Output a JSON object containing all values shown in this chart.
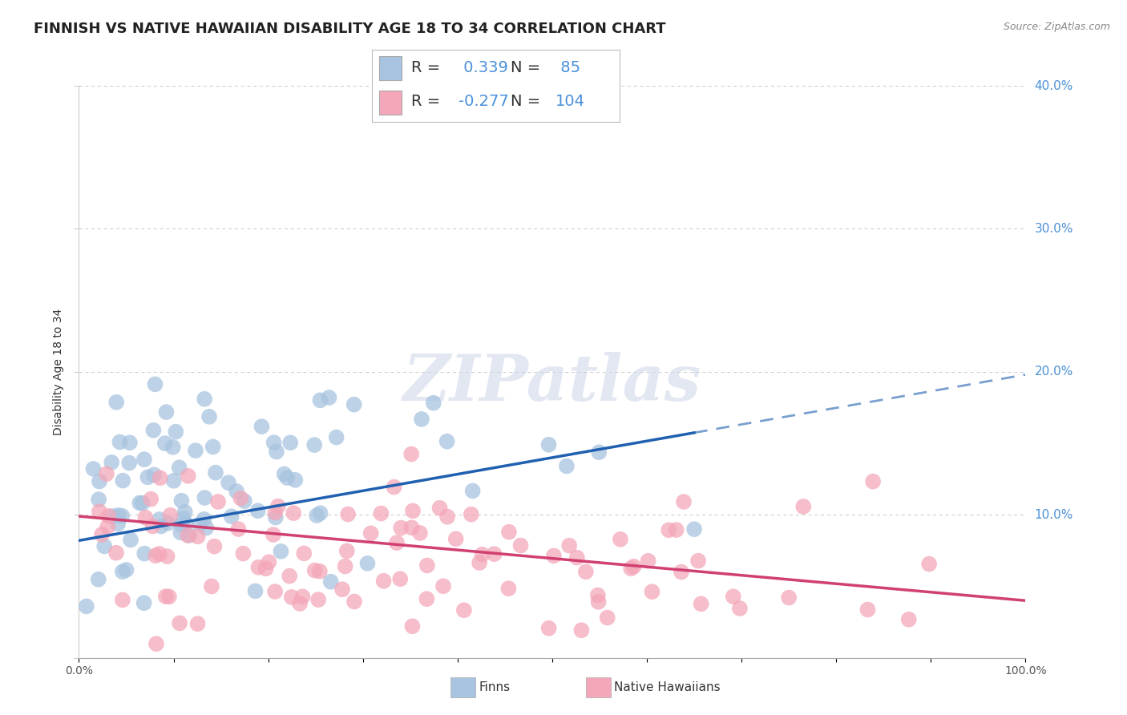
{
  "title": "FINNISH VS NATIVE HAWAIIAN DISABILITY AGE 18 TO 34 CORRELATION CHART",
  "source": "Source: ZipAtlas.com",
  "ylabel": "Disability Age 18 to 34",
  "xlim": [
    0,
    1.0
  ],
  "ylim": [
    0,
    0.4
  ],
  "xticks": [
    0.0,
    0.1,
    0.2,
    0.3,
    0.4,
    0.5,
    0.6,
    0.7,
    0.8,
    0.9,
    1.0
  ],
  "xticklabels": [
    "0.0%",
    "",
    "",
    "",
    "",
    "",
    "",
    "",
    "",
    "",
    "100.0%"
  ],
  "yticks": [
    0.0,
    0.1,
    0.2,
    0.3,
    0.4
  ],
  "yticklabels_right": [
    "",
    "10.0%",
    "20.0%",
    "30.0%",
    "40.0%"
  ],
  "finns_color": "#a8c4e0",
  "hawaiians_color": "#f4a7b9",
  "finns_R": 0.339,
  "finns_N": 85,
  "hawaiians_R": -0.277,
  "hawaiians_N": 104,
  "finns_line_color": "#2060b0",
  "hawaiians_line_color": "#d04070",
  "finns_line_start_y": 0.082,
  "finns_line_end_y": 0.198,
  "hawaiians_line_start_y": 0.099,
  "hawaiians_line_end_y": 0.04,
  "watermark_text": "ZIPatlas",
  "legend_R_color": "#4a90d9",
  "background_color": "#ffffff",
  "grid_color": "#c8c8c8",
  "title_fontsize": 13,
  "axis_label_fontsize": 10,
  "tick_fontsize": 10,
  "legend_fontsize": 14,
  "right_tick_color": "#4a90d9"
}
